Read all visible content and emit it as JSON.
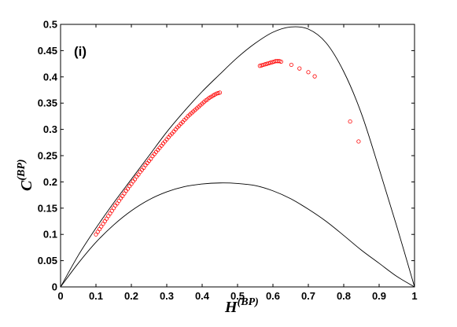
{
  "chart_data": {
    "type": "scatter",
    "title": "",
    "panel_label": "(i)",
    "xlabel": {
      "base": "H",
      "sup": "(BP)"
    },
    "ylabel": {
      "base": "C",
      "sup": "(BP)"
    },
    "xlim": [
      0,
      1
    ],
    "ylim": [
      0,
      0.5
    ],
    "xticks": [
      "0",
      "0.1",
      "0.2",
      "0.3",
      "0.4",
      "0.5",
      "0.6",
      "0.7",
      "0.8",
      "0.9",
      "1"
    ],
    "yticks": [
      "0",
      "0.05",
      "0.1",
      "0.15",
      "0.2",
      "0.25",
      "0.3",
      "0.35",
      "0.4",
      "0.45",
      "0.5"
    ],
    "grid": false,
    "legend": "none",
    "colors": {
      "points": "#ff0000",
      "curves": "#000000",
      "axes": "#000000"
    },
    "upper_curve": [
      [
        0,
        0
      ],
      [
        0.05,
        0.06
      ],
      [
        0.1,
        0.112
      ],
      [
        0.15,
        0.16
      ],
      [
        0.2,
        0.205
      ],
      [
        0.25,
        0.25
      ],
      [
        0.3,
        0.295
      ],
      [
        0.35,
        0.335
      ],
      [
        0.4,
        0.372
      ],
      [
        0.45,
        0.405
      ],
      [
        0.5,
        0.437
      ],
      [
        0.55,
        0.464
      ],
      [
        0.6,
        0.485
      ],
      [
        0.65,
        0.495
      ],
      [
        0.7,
        0.491
      ],
      [
        0.75,
        0.465
      ],
      [
        0.8,
        0.41
      ],
      [
        0.85,
        0.33
      ],
      [
        0.9,
        0.225
      ],
      [
        0.95,
        0.115
      ],
      [
        1.0,
        0
      ]
    ],
    "lower_curve": [
      [
        0,
        0
      ],
      [
        0.05,
        0.045
      ],
      [
        0.1,
        0.085
      ],
      [
        0.15,
        0.118
      ],
      [
        0.2,
        0.145
      ],
      [
        0.25,
        0.166
      ],
      [
        0.3,
        0.181
      ],
      [
        0.35,
        0.191
      ],
      [
        0.4,
        0.196
      ],
      [
        0.45,
        0.198
      ],
      [
        0.5,
        0.197
      ],
      [
        0.55,
        0.193
      ],
      [
        0.6,
        0.183
      ],
      [
        0.65,
        0.168
      ],
      [
        0.7,
        0.148
      ],
      [
        0.75,
        0.125
      ],
      [
        0.8,
        0.098
      ],
      [
        0.85,
        0.07
      ],
      [
        0.9,
        0.045
      ],
      [
        0.95,
        0.02
      ],
      [
        1.0,
        0
      ]
    ],
    "series": [
      {
        "values": [
          [
            0.1,
            0.1
          ],
          [
            0.105,
            0.105
          ],
          [
            0.11,
            0.11
          ],
          [
            0.115,
            0.115
          ],
          [
            0.12,
            0.12
          ],
          [
            0.125,
            0.125
          ],
          [
            0.13,
            0.13
          ],
          [
            0.135,
            0.135
          ],
          [
            0.14,
            0.14
          ],
          [
            0.145,
            0.145
          ],
          [
            0.15,
            0.15
          ],
          [
            0.155,
            0.155
          ],
          [
            0.16,
            0.159
          ],
          [
            0.165,
            0.164
          ],
          [
            0.17,
            0.169
          ],
          [
            0.175,
            0.173
          ],
          [
            0.18,
            0.178
          ],
          [
            0.185,
            0.183
          ],
          [
            0.19,
            0.187
          ],
          [
            0.195,
            0.192
          ],
          [
            0.2,
            0.196
          ],
          [
            0.205,
            0.201
          ],
          [
            0.21,
            0.205
          ],
          [
            0.215,
            0.21
          ],
          [
            0.22,
            0.214
          ],
          [
            0.225,
            0.219
          ],
          [
            0.23,
            0.223
          ],
          [
            0.235,
            0.227
          ],
          [
            0.24,
            0.232
          ],
          [
            0.245,
            0.236
          ],
          [
            0.25,
            0.24
          ],
          [
            0.255,
            0.244
          ],
          [
            0.26,
            0.249
          ],
          [
            0.265,
            0.253
          ],
          [
            0.27,
            0.257
          ],
          [
            0.275,
            0.261
          ],
          [
            0.28,
            0.265
          ],
          [
            0.285,
            0.269
          ],
          [
            0.29,
            0.273
          ],
          [
            0.295,
            0.277
          ],
          [
            0.3,
            0.281
          ],
          [
            0.305,
            0.285
          ],
          [
            0.31,
            0.289
          ],
          [
            0.315,
            0.292
          ],
          [
            0.32,
            0.296
          ],
          [
            0.325,
            0.3
          ],
          [
            0.33,
            0.304
          ],
          [
            0.335,
            0.307
          ],
          [
            0.34,
            0.311
          ],
          [
            0.345,
            0.314
          ],
          [
            0.35,
            0.318
          ],
          [
            0.355,
            0.321
          ],
          [
            0.36,
            0.325
          ],
          [
            0.365,
            0.328
          ],
          [
            0.37,
            0.331
          ],
          [
            0.375,
            0.334
          ],
          [
            0.38,
            0.337
          ],
          [
            0.385,
            0.34
          ],
          [
            0.39,
            0.343
          ],
          [
            0.395,
            0.346
          ],
          [
            0.4,
            0.349
          ],
          [
            0.405,
            0.352
          ],
          [
            0.41,
            0.355
          ],
          [
            0.415,
            0.357
          ],
          [
            0.42,
            0.36
          ],
          [
            0.425,
            0.362
          ],
          [
            0.43,
            0.364
          ],
          [
            0.435,
            0.366
          ],
          [
            0.44,
            0.368
          ],
          [
            0.445,
            0.369
          ],
          [
            0.45,
            0.37
          ],
          [
            0.563,
            0.421
          ],
          [
            0.568,
            0.422
          ],
          [
            0.573,
            0.423
          ],
          [
            0.578,
            0.424
          ],
          [
            0.583,
            0.425
          ],
          [
            0.588,
            0.426
          ],
          [
            0.593,
            0.427
          ],
          [
            0.598,
            0.428
          ],
          [
            0.603,
            0.429
          ],
          [
            0.608,
            0.43
          ],
          [
            0.613,
            0.43
          ],
          [
            0.618,
            0.43
          ],
          [
            0.623,
            0.429
          ],
          [
            0.652,
            0.423
          ],
          [
            0.675,
            0.416
          ],
          [
            0.7,
            0.409
          ],
          [
            0.718,
            0.401
          ],
          [
            0.818,
            0.315
          ],
          [
            0.842,
            0.277
          ]
        ]
      }
    ]
  }
}
